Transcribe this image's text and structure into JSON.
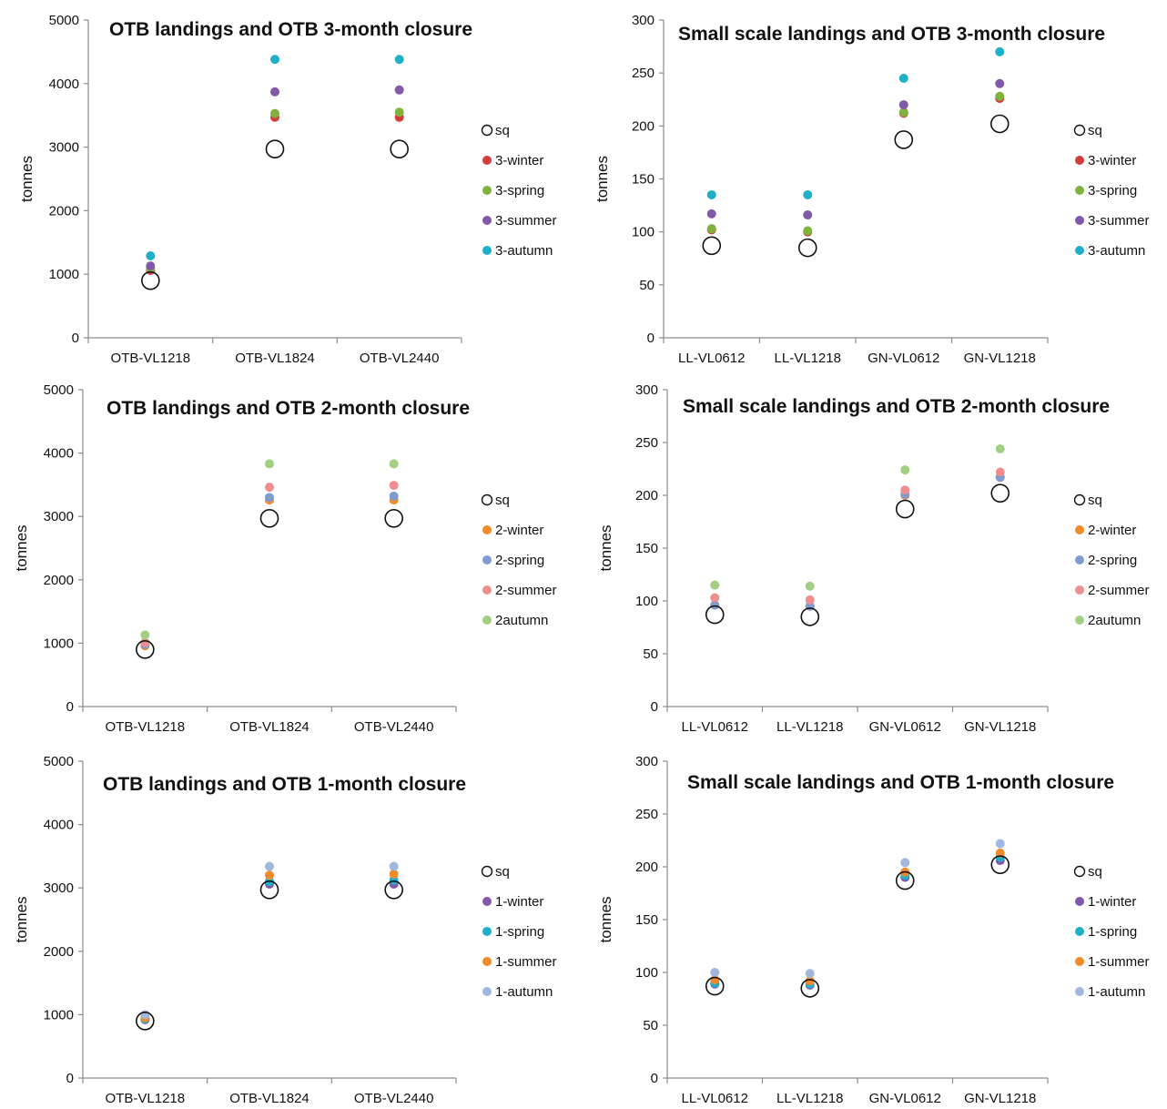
{
  "chart_data": [
    {
      "type": "scatter",
      "title": "OTB landings and OTB 3-month closure",
      "ylabel": "tonnes",
      "ylim": [
        0,
        5000
      ],
      "yticks": [
        0,
        1000,
        2000,
        3000,
        4000,
        5000
      ],
      "categories": [
        "OTB-VL1218",
        "OTB-VL1824",
        "OTB-VL2440"
      ],
      "grid": false,
      "legend": "right",
      "series": [
        {
          "name": "sq",
          "hollow": true,
          "color": "#000000",
          "values": [
            900,
            2970,
            2970
          ]
        },
        {
          "name": "3-winter",
          "color": "#d43c3c",
          "values": [
            1060,
            3470,
            3470
          ]
        },
        {
          "name": "3-spring",
          "color": "#7fb33e",
          "values": [
            1090,
            3530,
            3550
          ]
        },
        {
          "name": "3-summer",
          "color": "#8258ab",
          "values": [
            1130,
            3870,
            3900
          ]
        },
        {
          "name": "3-autumn",
          "color": "#1fb0c8",
          "values": [
            1290,
            4380,
            4380
          ]
        }
      ]
    },
    {
      "type": "scatter",
      "title": "Small scale landings and OTB 3-month closure",
      "ylabel": "tonnes",
      "ylim": [
        0,
        300
      ],
      "yticks": [
        0,
        50,
        100,
        150,
        200,
        250,
        300
      ],
      "categories": [
        "LL-VL0612",
        "LL-VL1218",
        "GN-VL0612",
        "GN-VL1218"
      ],
      "grid": false,
      "legend": "right",
      "series": [
        {
          "name": "sq",
          "hollow": true,
          "color": "#000000",
          "values": [
            87,
            85,
            187,
            202
          ]
        },
        {
          "name": "3-winter",
          "color": "#d43c3c",
          "values": [
            102,
            100,
            212,
            226
          ]
        },
        {
          "name": "3-spring",
          "color": "#7fb33e",
          "values": [
            103,
            101,
            213,
            228
          ]
        },
        {
          "name": "3-summer",
          "color": "#8258ab",
          "values": [
            117,
            116,
            220,
            240
          ]
        },
        {
          "name": "3-autumn",
          "color": "#1fb0c8",
          "values": [
            135,
            135,
            245,
            270
          ]
        }
      ]
    },
    {
      "type": "scatter",
      "title": "OTB landings and OTB 2-month closure",
      "ylabel": "tonnes",
      "ylim": [
        0,
        5000
      ],
      "yticks": [
        0,
        1000,
        2000,
        3000,
        4000,
        5000
      ],
      "categories": [
        "OTB-VL1218",
        "OTB-VL1824",
        "OTB-VL2440"
      ],
      "grid": false,
      "legend": "right",
      "series": [
        {
          "name": "sq",
          "hollow": true,
          "color": "#000000",
          "values": [
            900,
            2970,
            2970
          ]
        },
        {
          "name": "2-winter",
          "color": "#f08a2a",
          "values": [
            960,
            3260,
            3260
          ]
        },
        {
          "name": "2-spring",
          "color": "#7f9bd0",
          "values": [
            980,
            3300,
            3320
          ]
        },
        {
          "name": "2-summer",
          "color": "#ee8e8e",
          "values": [
            1010,
            3460,
            3490
          ]
        },
        {
          "name": "2autumn",
          "color": "#a3cf83",
          "values": [
            1130,
            3830,
            3830
          ]
        }
      ]
    },
    {
      "type": "scatter",
      "title": "Small scale landings and OTB 2-month closure",
      "ylabel": "tonnes",
      "ylim": [
        0,
        300
      ],
      "yticks": [
        0,
        50,
        100,
        150,
        200,
        250,
        300
      ],
      "categories": [
        "LL-VL0612",
        "LL-VL1218",
        "GN-VL0612",
        "GN-VL1218"
      ],
      "grid": false,
      "legend": "right",
      "series": [
        {
          "name": "sq",
          "hollow": true,
          "color": "#000000",
          "values": [
            87,
            85,
            187,
            202
          ]
        },
        {
          "name": "2-winter",
          "color": "#f08a2a",
          "values": [
            96,
            95,
            200,
            217
          ]
        },
        {
          "name": "2-spring",
          "color": "#7f9bd0",
          "values": [
            96,
            95,
            201,
            217
          ]
        },
        {
          "name": "2-summer",
          "color": "#ee8e8e",
          "values": [
            103,
            101,
            205,
            222
          ]
        },
        {
          "name": "2autumn",
          "color": "#a3cf83",
          "values": [
            115,
            114,
            224,
            244
          ]
        }
      ]
    },
    {
      "type": "scatter",
      "title": "OTB landings and OTB 1-month closure",
      "ylabel": "tonnes",
      "ylim": [
        0,
        5000
      ],
      "yticks": [
        0,
        1000,
        2000,
        3000,
        4000,
        5000
      ],
      "categories": [
        "OTB-VL1218",
        "OTB-VL1824",
        "OTB-VL2440"
      ],
      "grid": false,
      "legend": "right",
      "series": [
        {
          "name": "sq",
          "hollow": true,
          "color": "#000000",
          "values": [
            900,
            2970,
            2970
          ]
        },
        {
          "name": "1-winter",
          "color": "#8258ab",
          "values": [
            920,
            3060,
            3060
          ]
        },
        {
          "name": "1-spring",
          "color": "#1fb0c8",
          "values": [
            930,
            3100,
            3120
          ]
        },
        {
          "name": "1-summer",
          "color": "#f08a2a",
          "values": [
            950,
            3200,
            3220
          ]
        },
        {
          "name": "1-autumn",
          "color": "#a0b8de",
          "values": [
            1000,
            3340,
            3340
          ]
        }
      ]
    },
    {
      "type": "scatter",
      "title": "Small scale landings and OTB 1-month closure",
      "ylabel": "tonnes",
      "ylim": [
        0,
        300
      ],
      "yticks": [
        0,
        50,
        100,
        150,
        200,
        250,
        300
      ],
      "categories": [
        "LL-VL0612",
        "LL-VL1218",
        "GN-VL0612",
        "GN-VL1218"
      ],
      "grid": false,
      "legend": "right",
      "series": [
        {
          "name": "sq",
          "hollow": true,
          "color": "#000000",
          "values": [
            87,
            85,
            187,
            202
          ]
        },
        {
          "name": "1-winter",
          "color": "#8258ab",
          "values": [
            89,
            88,
            190,
            206
          ]
        },
        {
          "name": "1-spring",
          "color": "#1fb0c8",
          "values": [
            90,
            89,
            192,
            209
          ]
        },
        {
          "name": "1-summer",
          "color": "#f08a2a",
          "values": [
            93,
            92,
            195,
            213
          ]
        },
        {
          "name": "1-autumn",
          "color": "#a0b8de",
          "values": [
            100,
            99,
            204,
            222
          ]
        }
      ]
    }
  ]
}
